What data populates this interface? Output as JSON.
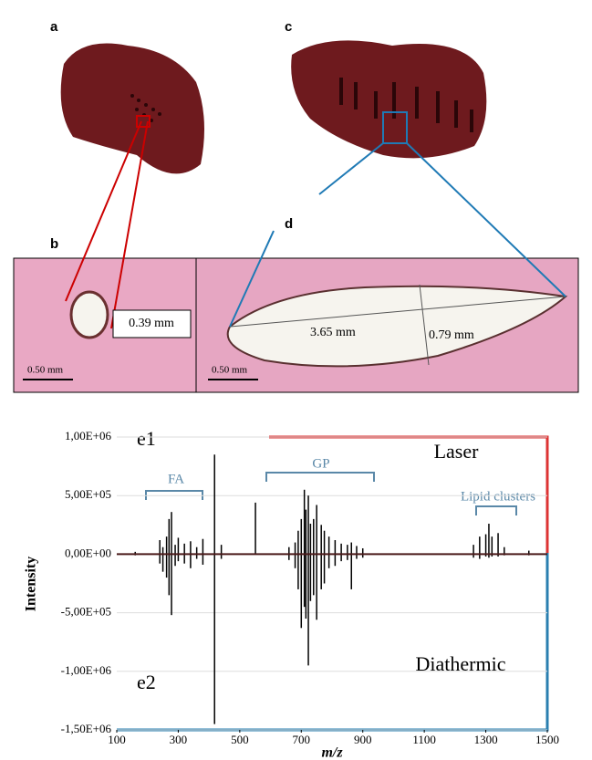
{
  "panels": {
    "a": "a",
    "b": "b",
    "c": "c",
    "d": "d",
    "b_measure": "0.39 mm",
    "b_scale": "0.50 mm",
    "d_length": "3.65 mm",
    "d_width": "0.79 mm",
    "d_scale": "0.50 mm"
  },
  "chart_data": {
    "type": "stem",
    "panel_top": "e1",
    "panel_bottom": "e2",
    "annotations": [
      "FA",
      "GP",
      "Lipid clusters"
    ],
    "x_label": "m/z",
    "y_label": "Intensity",
    "x": [
      160,
      240,
      250,
      262,
      270,
      278,
      290,
      300,
      320,
      340,
      360,
      380,
      418,
      440,
      551,
      660,
      680,
      690,
      700,
      710,
      715,
      723,
      730,
      740,
      750,
      765,
      775,
      790,
      810,
      830,
      850,
      863,
      880,
      900,
      1260,
      1280,
      1300,
      1310,
      1320,
      1340,
      1360,
      1440
    ],
    "series": [
      {
        "name": "Laser",
        "color": "#000000",
        "values": [
          20000,
          120000,
          60000,
          150000,
          300000,
          360000,
          80000,
          140000,
          90000,
          110000,
          60000,
          130000,
          850000,
          80000,
          440000,
          60000,
          100000,
          200000,
          300000,
          550000,
          380000,
          500000,
          260000,
          300000,
          420000,
          250000,
          200000,
          150000,
          120000,
          90000,
          80000,
          100000,
          70000,
          50000,
          80000,
          150000,
          170000,
          260000,
          150000,
          180000,
          60000,
          30000
        ]
      },
      {
        "name": "Diathermic",
        "color": "#000000",
        "values": [
          -10000,
          -80000,
          -150000,
          -200000,
          -350000,
          -520000,
          -100000,
          -60000,
          -80000,
          -120000,
          -40000,
          -90000,
          -1450000,
          -40000,
          0,
          -50000,
          -120000,
          -300000,
          -630000,
          -450000,
          -550000,
          -950000,
          -400000,
          -350000,
          -560000,
          -300000,
          -250000,
          -120000,
          -100000,
          -60000,
          -50000,
          -300000,
          -40000,
          -30000,
          -30000,
          -40000,
          -20000,
          -30000,
          -20000,
          -20000,
          -10000,
          -10000
        ]
      }
    ],
    "xlim": [
      100,
      1500
    ],
    "xticks": [
      100,
      300,
      500,
      700,
      900,
      1100,
      1300,
      1500
    ],
    "ylim": [
      -1500000,
      1000000
    ],
    "yticks": [
      {
        "value": 1000000,
        "label": "1,00E+06"
      },
      {
        "value": 500000,
        "label": "5,00E+05"
      },
      {
        "value": 0,
        "label": "0,00E+00"
      },
      {
        "value": -500000,
        "label": "-5,00E+05"
      },
      {
        "value": -1000000,
        "label": "-1,00E+06"
      },
      {
        "value": -1500000,
        "label": "-1,50E+06"
      }
    ],
    "grid": true
  }
}
